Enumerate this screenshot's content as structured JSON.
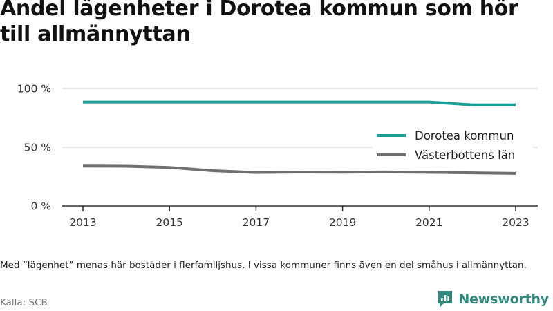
{
  "title": "Andel lägenheter i Dorotea kommun som hör till allmännyttan",
  "footnote": "Med ”lägenhet” menas här bostäder i flerfamiljshus. I vissa kommuner finns även en del småhus i allmännyttan.",
  "source": "Källa: SCB",
  "brand": {
    "name": "Newsworthy",
    "color": "#33897f",
    "icon": "newsworthy-logo-icon"
  },
  "chart_data": {
    "type": "line",
    "title": "Andel lägenheter i Dorotea kommun som hör till allmännyttan",
    "xlabel": "",
    "ylabel": "",
    "x": [
      2013,
      2014,
      2015,
      2016,
      2017,
      2018,
      2019,
      2020,
      2021,
      2022,
      2023
    ],
    "xtick_labels": [
      "2013",
      "2015",
      "2017",
      "2019",
      "2021",
      "2023"
    ],
    "xtick_values": [
      2013,
      2015,
      2017,
      2019,
      2021,
      2023
    ],
    "ytick_labels": [
      "0 %",
      "50 %",
      "100 %"
    ],
    "ytick_values": [
      0,
      50,
      100
    ],
    "ylim": [
      0,
      100
    ],
    "xlim": [
      2013,
      2023
    ],
    "grid": "horizontal",
    "legend_position": "right",
    "series": [
      {
        "name": "Dorotea kommun",
        "color": "#1a9e96",
        "values": [
          88.5,
          88.5,
          88.5,
          88.5,
          88.5,
          88.5,
          88.5,
          88.5,
          88.5,
          86,
          86
        ]
      },
      {
        "name": "Västerbottens län",
        "color": "#6f6f6f",
        "values": [
          34,
          33.8,
          32.8,
          30,
          28.5,
          28.8,
          28.7,
          28.9,
          28.6,
          28.2,
          27.7
        ]
      }
    ]
  }
}
